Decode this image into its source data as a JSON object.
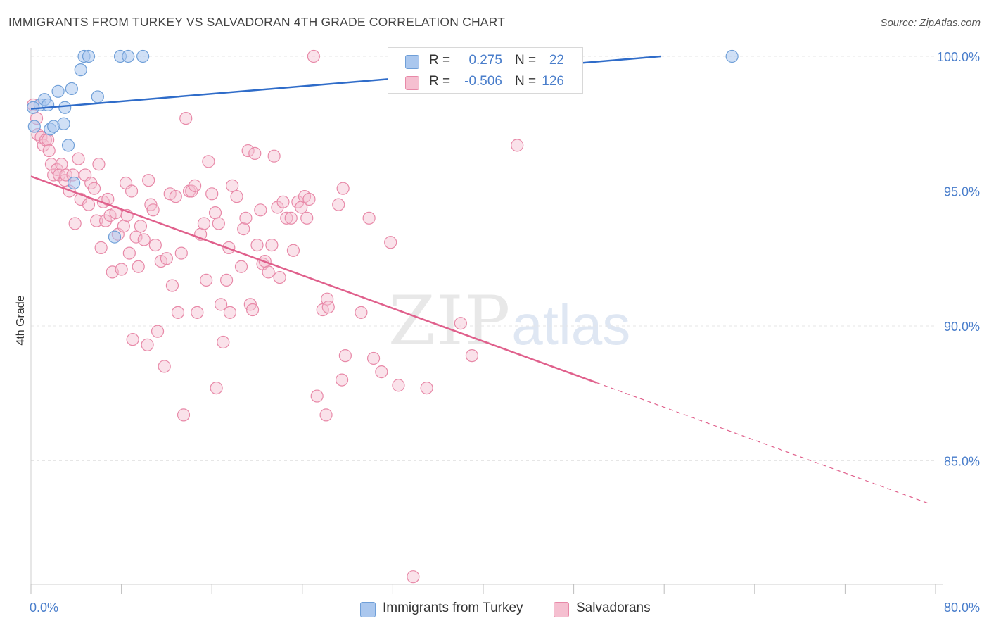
{
  "header": {
    "title": "IMMIGRANTS FROM TURKEY VS SALVADORAN 4TH GRADE CORRELATION CHART",
    "source": "Source: ZipAtlas.com"
  },
  "watermark": {
    "zip": "ZIP",
    "atlas": "atlas"
  },
  "colors": {
    "blue": "#6f9fd8",
    "blue_fill": "#aac7ee",
    "blue_line": "#2f6cc9",
    "pink": "#e889a8",
    "pink_fill": "#f5bfd0",
    "pink_line": "#e0608c",
    "grid": "#e6e6e6"
  },
  "legend_top": {
    "rows": [
      {
        "r_label": "R =",
        "r_value": "0.275",
        "n_label": "N =",
        "n_value": "22"
      },
      {
        "r_label": "R =",
        "r_value": "-0.506",
        "n_label": "N =",
        "n_value": "126"
      }
    ]
  },
  "legend_bottom": {
    "items": [
      {
        "label": "Immigrants from Turkey"
      },
      {
        "label": "Salvadorans"
      }
    ]
  },
  "chart_data": {
    "type": "scatter",
    "title": "IMMIGRANTS FROM TURKEY VS SALVADORAN 4TH GRADE CORRELATION CHART",
    "xlabel": "",
    "ylabel": "4th Grade",
    "xlim": [
      0,
      80
    ],
    "ylim": [
      80.5,
      100.4
    ],
    "x_tick_labels": [
      "0.0%",
      "80.0%"
    ],
    "y_ticks": [
      85,
      90,
      95,
      100
    ],
    "y_tick_labels": [
      "85.0%",
      "90.0%",
      "95.0%",
      "100.0%"
    ],
    "grid": true,
    "legend_position": "top-center",
    "series": [
      {
        "name": "Immigrants from Turkey",
        "color": "#6f9fd8",
        "r": 0.275,
        "n": 22,
        "trend": {
          "x": [
            0,
            55.7
          ],
          "y": [
            98.05,
            100.0
          ],
          "dashed_to": 55.7
        },
        "points": [
          [
            0.3,
            97.4
          ],
          [
            0.8,
            98.2
          ],
          [
            1.2,
            98.4
          ],
          [
            1.5,
            98.2
          ],
          [
            1.7,
            97.3
          ],
          [
            2.0,
            97.4
          ],
          [
            2.4,
            98.7
          ],
          [
            2.9,
            97.5
          ],
          [
            3.0,
            98.1
          ],
          [
            3.3,
            96.7
          ],
          [
            3.6,
            98.8
          ],
          [
            3.8,
            95.3
          ],
          [
            4.4,
            99.5
          ],
          [
            4.7,
            100.0
          ],
          [
            5.1,
            100.0
          ],
          [
            5.9,
            98.5
          ],
          [
            7.4,
            93.3
          ],
          [
            7.9,
            100.0
          ],
          [
            8.6,
            100.0
          ],
          [
            9.9,
            100.0
          ],
          [
            62.0,
            100.0
          ],
          [
            0.2,
            98.1
          ]
        ]
      },
      {
        "name": "Salvadorans",
        "color": "#e889a8",
        "r": -0.506,
        "n": 126,
        "trend": {
          "x": [
            0,
            50.0
          ],
          "y": [
            95.55,
            87.9
          ],
          "dashed_x": [
            50.0,
            79.5
          ],
          "dashed_y": [
            87.9,
            83.4
          ]
        },
        "points": [
          [
            0.2,
            98.2
          ],
          [
            0.5,
            97.7
          ],
          [
            0.6,
            97.1
          ],
          [
            0.9,
            97.0
          ],
          [
            1.1,
            96.7
          ],
          [
            1.3,
            96.9
          ],
          [
            1.5,
            96.9
          ],
          [
            1.6,
            96.5
          ],
          [
            1.8,
            96.0
          ],
          [
            2.0,
            95.6
          ],
          [
            2.3,
            95.8
          ],
          [
            2.5,
            95.6
          ],
          [
            2.7,
            96.0
          ],
          [
            3.0,
            95.4
          ],
          [
            3.1,
            95.6
          ],
          [
            3.4,
            95.0
          ],
          [
            3.7,
            95.6
          ],
          [
            3.9,
            93.8
          ],
          [
            4.2,
            96.2
          ],
          [
            4.4,
            94.7
          ],
          [
            4.8,
            95.6
          ],
          [
            5.1,
            94.5
          ],
          [
            5.3,
            95.3
          ],
          [
            5.6,
            95.1
          ],
          [
            5.8,
            93.9
          ],
          [
            6.0,
            96.0
          ],
          [
            6.2,
            92.9
          ],
          [
            6.4,
            94.6
          ],
          [
            6.6,
            93.9
          ],
          [
            6.8,
            94.7
          ],
          [
            7.0,
            94.1
          ],
          [
            7.2,
            92.0
          ],
          [
            7.5,
            94.2
          ],
          [
            7.7,
            93.4
          ],
          [
            8.0,
            92.1
          ],
          [
            8.2,
            93.7
          ],
          [
            8.4,
            95.3
          ],
          [
            8.5,
            94.1
          ],
          [
            8.7,
            92.7
          ],
          [
            8.9,
            95.0
          ],
          [
            9.0,
            89.5
          ],
          [
            9.3,
            93.3
          ],
          [
            9.5,
            92.2
          ],
          [
            9.7,
            93.7
          ],
          [
            10.0,
            93.2
          ],
          [
            10.3,
            89.3
          ],
          [
            10.4,
            95.4
          ],
          [
            10.6,
            94.5
          ],
          [
            10.8,
            94.3
          ],
          [
            11.0,
            93.0
          ],
          [
            11.2,
            89.8
          ],
          [
            11.5,
            92.4
          ],
          [
            11.8,
            88.5
          ],
          [
            12.0,
            92.5
          ],
          [
            12.3,
            94.9
          ],
          [
            12.5,
            91.5
          ],
          [
            12.8,
            94.8
          ],
          [
            13.0,
            90.5
          ],
          [
            13.3,
            92.7
          ],
          [
            13.5,
            86.7
          ],
          [
            13.7,
            97.7
          ],
          [
            14.0,
            95.0
          ],
          [
            14.2,
            95.0
          ],
          [
            14.5,
            95.2
          ],
          [
            14.7,
            90.5
          ],
          [
            15.0,
            93.4
          ],
          [
            15.3,
            93.8
          ],
          [
            15.5,
            91.7
          ],
          [
            15.7,
            96.1
          ],
          [
            16.0,
            94.9
          ],
          [
            16.3,
            94.2
          ],
          [
            16.6,
            93.8
          ],
          [
            16.4,
            87.7
          ],
          [
            16.8,
            90.8
          ],
          [
            17.0,
            89.4
          ],
          [
            17.3,
            91.7
          ],
          [
            17.5,
            92.9
          ],
          [
            17.6,
            90.5
          ],
          [
            17.8,
            95.2
          ],
          [
            18.2,
            94.8
          ],
          [
            18.6,
            92.2
          ],
          [
            18.8,
            93.6
          ],
          [
            19.0,
            94.0
          ],
          [
            19.2,
            96.5
          ],
          [
            19.4,
            90.8
          ],
          [
            19.6,
            90.6
          ],
          [
            19.8,
            96.4
          ],
          [
            20.0,
            93.0
          ],
          [
            20.3,
            94.3
          ],
          [
            20.5,
            92.3
          ],
          [
            20.7,
            92.4
          ],
          [
            21.0,
            92.0
          ],
          [
            21.3,
            93.0
          ],
          [
            21.5,
            96.3
          ],
          [
            21.8,
            94.4
          ],
          [
            22.0,
            91.8
          ],
          [
            22.3,
            94.6
          ],
          [
            22.6,
            94.0
          ],
          [
            23.0,
            94.0
          ],
          [
            23.2,
            92.8
          ],
          [
            23.6,
            94.6
          ],
          [
            23.9,
            94.4
          ],
          [
            24.2,
            94.8
          ],
          [
            24.4,
            94.0
          ],
          [
            24.6,
            94.7
          ],
          [
            25.0,
            100.0
          ],
          [
            25.3,
            87.4
          ],
          [
            25.8,
            90.6
          ],
          [
            26.1,
            86.7
          ],
          [
            26.2,
            91.0
          ],
          [
            26.3,
            90.7
          ],
          [
            27.2,
            94.5
          ],
          [
            27.5,
            88.0
          ],
          [
            27.6,
            95.1
          ],
          [
            27.8,
            88.9
          ],
          [
            29.2,
            90.5
          ],
          [
            29.9,
            94.0
          ],
          [
            30.3,
            88.8
          ],
          [
            31.0,
            88.3
          ],
          [
            31.8,
            93.1
          ],
          [
            32.5,
            87.8
          ],
          [
            35.0,
            87.7
          ],
          [
            38.0,
            90.1
          ],
          [
            39.0,
            88.9
          ],
          [
            43.0,
            96.7
          ],
          [
            33.8,
            80.7
          ]
        ]
      }
    ]
  }
}
